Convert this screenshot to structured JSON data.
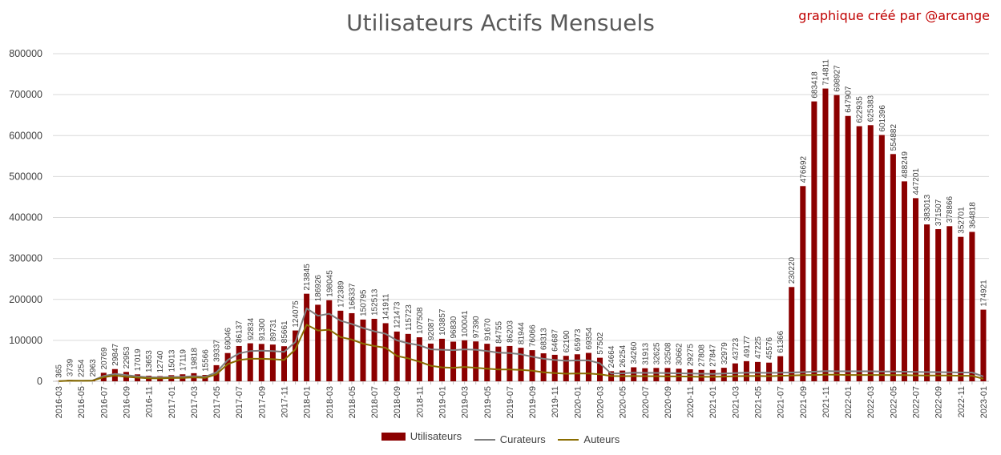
{
  "chart_data": {
    "type": "bar",
    "title": "Utilisateurs Actifs Mensuels",
    "credit": "graphique créé par  @arcange",
    "ylim": [
      0,
      800000
    ],
    "yticks": [
      "0",
      "100000",
      "200000",
      "300000",
      "400000",
      "500000",
      "600000",
      "700000",
      "800000"
    ],
    "grid": true,
    "legend_position": "bottom",
    "colors": {
      "Utilisateurs": "#8b0000",
      "Curateurs": "#7f7f7f",
      "Auteurs": "#8a6d00"
    },
    "categories": [
      "2016-03",
      "2016-04",
      "2016-05",
      "2016-06",
      "2016-07",
      "2016-08",
      "2016-09",
      "2016-10",
      "2016-11",
      "2016-12",
      "2017-01",
      "2017-02",
      "2017-03",
      "2017-04",
      "2017-05",
      "2017-06",
      "2017-07",
      "2017-08",
      "2017-09",
      "2017-10",
      "2017-11",
      "2017-12",
      "2018-01",
      "2018-02",
      "2018-03",
      "2018-04",
      "2018-05",
      "2018-06",
      "2018-07",
      "2018-08",
      "2018-09",
      "2018-10",
      "2018-11",
      "2018-12",
      "2019-01",
      "2019-02",
      "2019-03",
      "2019-04",
      "2019-05",
      "2019-06",
      "2019-07",
      "2019-08",
      "2019-09",
      "2019-10",
      "2019-11",
      "2019-12",
      "2020-01",
      "2020-02",
      "2020-03",
      "2020-04",
      "2020-05",
      "2020-06",
      "2020-07",
      "2020-08",
      "2020-09",
      "2020-10",
      "2020-11",
      "2020-12",
      "2021-01",
      "2021-02",
      "2021-03",
      "2021-04",
      "2021-05",
      "2021-06",
      "2021-07",
      "2021-08",
      "2021-09",
      "2021-10",
      "2021-11",
      "2021-12",
      "2022-01",
      "2022-02",
      "2022-03",
      "2022-04",
      "2022-05",
      "2022-06",
      "2022-07",
      "2022-08",
      "2022-09",
      "2022-10",
      "2022-11",
      "2022-12",
      "2023-01"
    ],
    "series": [
      {
        "name": "Utilisateurs",
        "kind": "bar",
        "values": [
          365,
          3739,
          2254,
          2963,
          20769,
          29847,
          22953,
          17019,
          13653,
          12740,
          15013,
          17119,
          19818,
          15566,
          39337,
          69046,
          86137,
          92834,
          91300,
          89731,
          85661,
          124075,
          213845,
          186926,
          198045,
          172389,
          166337,
          150795,
          152513,
          141911,
          121473,
          115723,
          107508,
          92087,
          103857,
          96830,
          100041,
          97390,
          91670,
          84755,
          86203,
          81944,
          76066,
          68313,
          64687,
          62190,
          65973,
          69354,
          57502,
          24664,
          26254,
          34260,
          31913,
          32625,
          32508,
          30662,
          29275,
          27808,
          27847,
          32979,
          43723,
          49177,
          47225,
          45576,
          61366,
          230220,
          476692,
          683418,
          714811,
          698927,
          647907,
          622935,
          625383,
          601396,
          554882,
          488249,
          447201,
          383013,
          371507,
          378866,
          352701,
          364818,
          174921
        ]
      },
      {
        "name": "Curateurs",
        "kind": "line",
        "values": [
          300,
          1800,
          1500,
          2000,
          13000,
          18000,
          15000,
          12000,
          10000,
          9500,
          10500,
          11000,
          12500,
          11000,
          22000,
          52000,
          68000,
          74000,
          75000,
          74000,
          72000,
          96000,
          178000,
          160000,
          165000,
          148000,
          140000,
          130000,
          122000,
          116000,
          100000,
          93000,
          88000,
          78000,
          77000,
          76000,
          78000,
          77000,
          74000,
          70000,
          69000,
          66000,
          60000,
          55000,
          52000,
          50000,
          51000,
          51000,
          44000,
          19000,
          19500,
          21000,
          20500,
          20500,
          20000,
          19500,
          19000,
          18500,
          18000,
          19000,
          20000,
          21000,
          21000,
          20500,
          21000,
          21500,
          22500,
          23500,
          25000,
          24500,
          24500,
          24500,
          24500,
          24000,
          24000,
          23500,
          23000,
          22500,
          22500,
          22000,
          21500,
          21500,
          12000
        ]
      },
      {
        "name": "Auteurs",
        "kind": "line",
        "values": [
          250,
          1400,
          1100,
          1500,
          10000,
          14000,
          11000,
          9000,
          7500,
          7000,
          8000,
          8500,
          9500,
          8500,
          17000,
          42000,
          52000,
          55000,
          55000,
          54000,
          52000,
          78000,
          138000,
          124000,
          126000,
          108000,
          102000,
          92000,
          86000,
          82000,
          62000,
          56000,
          48000,
          38000,
          34000,
          33000,
          35000,
          33000,
          31000,
          29000,
          29000,
          28000,
          26000,
          22000,
          20000,
          18500,
          19000,
          19000,
          17000,
          13000,
          12500,
          13000,
          12500,
          12500,
          12000,
          12000,
          11500,
          11000,
          11000,
          11500,
          12500,
          13000,
          13000,
          12500,
          13500,
          14000,
          15000,
          15500,
          16000,
          16000,
          15500,
          15500,
          15500,
          15500,
          15000,
          15000,
          14500,
          14000,
          14000,
          14000,
          13500,
          13500,
          6000
        ]
      }
    ]
  }
}
